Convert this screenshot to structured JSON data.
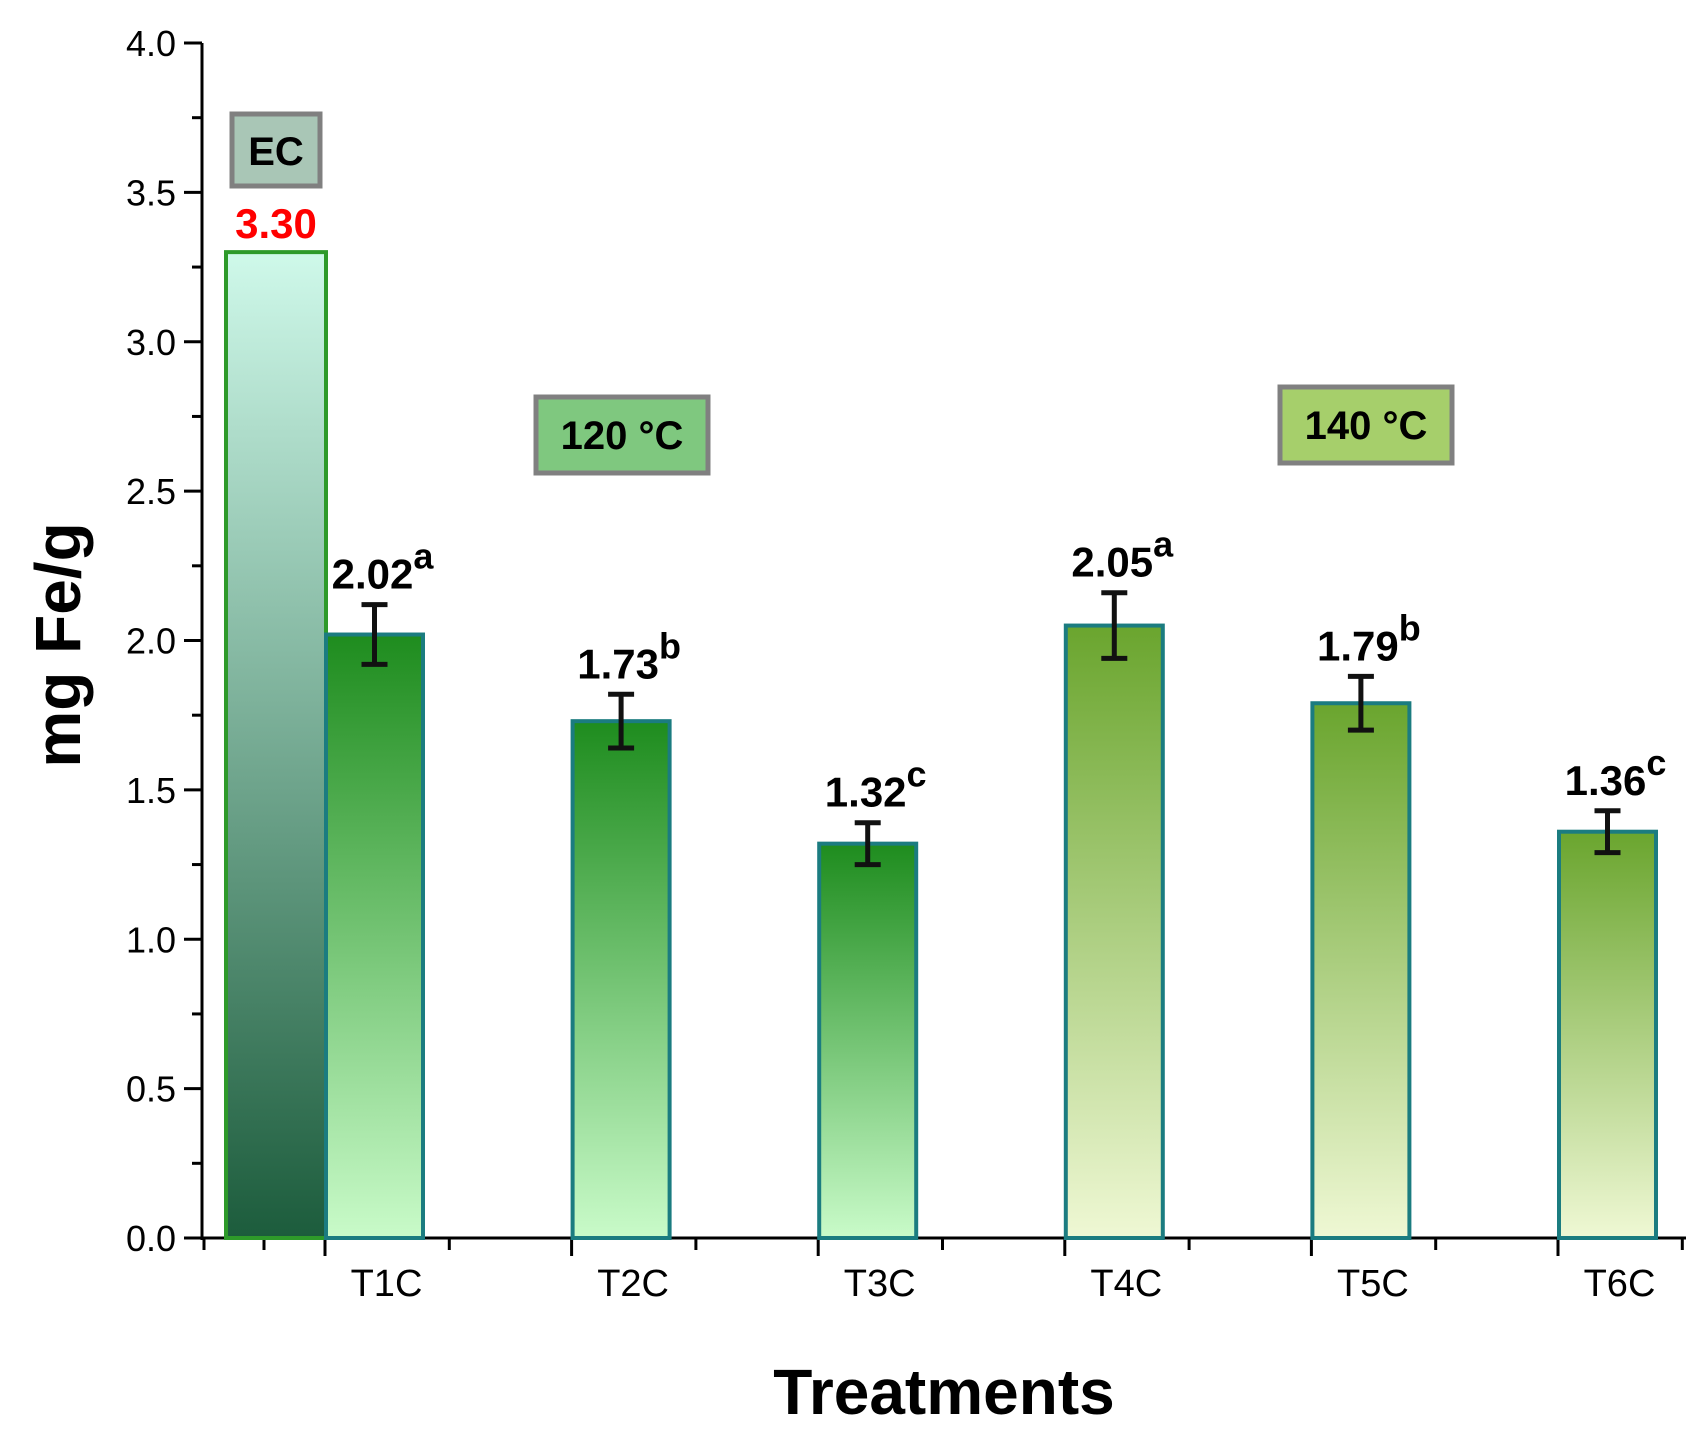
{
  "chart_data": {
    "type": "bar",
    "title": "",
    "xlabel": "Treatments",
    "ylabel": "mg Fe/g",
    "ylim": [
      0,
      4.0
    ],
    "yticks": [
      "0.0",
      "0.5",
      "1.0",
      "1.5",
      "2.0",
      "2.5",
      "3.0",
      "3.5",
      "4.0"
    ],
    "reference_bar": {
      "label": "EC",
      "value": 3.3,
      "value_label": "3.30"
    },
    "categories": [
      "T1C",
      "T2C",
      "T3C",
      "T4C",
      "T5C",
      "T6C"
    ],
    "values": [
      2.02,
      1.73,
      1.32,
      2.05,
      1.79,
      1.36
    ],
    "errors": [
      0.1,
      0.09,
      0.07,
      0.11,
      0.09,
      0.07
    ],
    "value_labels": [
      "2.02",
      "1.73",
      "1.32",
      "2.05",
      "1.79",
      "1.36"
    ],
    "letters": [
      "a",
      "b",
      "c",
      "a",
      "b",
      "c"
    ],
    "groups": [
      {
        "label": "120 °C",
        "members": [
          "T1C",
          "T2C",
          "T3C"
        ]
      },
      {
        "label": "140 °C",
        "members": [
          "T4C",
          "T5C",
          "T6C"
        ]
      }
    ]
  },
  "colors": {
    "ec_top": "#cff9ea",
    "ec_bottom": "#1c5c3c",
    "ec_border": "#2e9a2a",
    "g120_top": "#1e8c1e",
    "g120_bottom": "#c9fbc9",
    "g140_top": "#6aa52e",
    "g140_bottom": "#eff8d4",
    "bar_border": "#1b7c80",
    "value_red": "#ff0000",
    "label_box_ec": "#a9c6b6",
    "label_box_120": "#7fc87f",
    "label_box_140": "#a6cf6b",
    "label_box_border": "#808080"
  }
}
